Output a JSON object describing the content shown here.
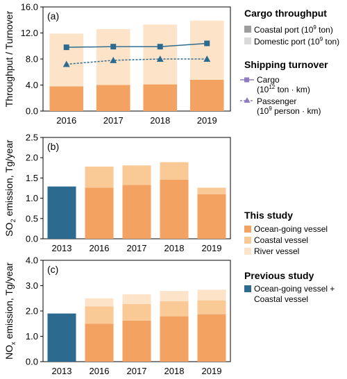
{
  "colors": {
    "ocean": "#f4a261",
    "coastal": "#f9c996",
    "river": "#fde3c8",
    "coastal_port": "#f4a261",
    "domestic_port": "#fde3c8",
    "previous": "#2d6a8f",
    "cargo_line": "#2d6a8f",
    "passenger_line": "#2d6a8f",
    "legend_cargo_line": "#8e7cc3",
    "legend_passenger_line": "#8e7cc3",
    "legend_coastal_port": "#9e9e9e",
    "legend_domestic_port": "#d9d9d9"
  },
  "chart_data": [
    {
      "type": "bar",
      "panel_label": "(a)",
      "ylabel": "Throughput / Turnover",
      "ylim": [
        0,
        16
      ],
      "yticks": [
        "0.0",
        "4.0",
        "8.0",
        "12.0",
        "16.0"
      ],
      "categories": [
        "2016",
        "2017",
        "2018",
        "2019"
      ],
      "series": [
        {
          "name": "Coastal port (10^9 ton)",
          "values": [
            3.8,
            4.0,
            4.1,
            4.8
          ]
        },
        {
          "name": "Domestic port (10^9 ton)",
          "values": [
            8.1,
            8.6,
            9.2,
            9.1
          ]
        },
        {
          "name": "Cargo (10^12 ton · km)",
          "type": "line",
          "values": [
            9.8,
            9.9,
            9.9,
            10.4
          ]
        },
        {
          "name": "Passenger (10^9 person · km)",
          "type": "line",
          "values": [
            7.2,
            7.8,
            8.0,
            8.0
          ]
        }
      ]
    },
    {
      "type": "bar",
      "panel_label": "(b)",
      "ylabel": "SO2 emission, Tg/year",
      "ylim": [
        0,
        2.5
      ],
      "yticks": [
        "0.0",
        "0.5",
        "1.0",
        "1.5",
        "2.0",
        "2.5"
      ],
      "categories": [
        "2013",
        "2016",
        "2017",
        "2018",
        "2019"
      ],
      "series": [
        {
          "name": "Ocean-going vessel + Coastal vessel (previous study)",
          "values": [
            1.29,
            null,
            null,
            null,
            null
          ]
        },
        {
          "name": "Ocean-going vessel",
          "values": [
            null,
            1.26,
            1.33,
            1.46,
            1.1
          ]
        },
        {
          "name": "Coastal vessel",
          "values": [
            null,
            0.52,
            0.48,
            0.43,
            0.16
          ]
        },
        {
          "name": "River vessel",
          "values": [
            null,
            0.0,
            0.0,
            0.0,
            0.0
          ]
        }
      ]
    },
    {
      "type": "bar",
      "panel_label": "(c)",
      "ylabel": "NOx emission, Tg/year",
      "ylim": [
        0,
        4.0
      ],
      "yticks": [
        "0.0",
        "1.0",
        "2.0",
        "3.0",
        "4.0"
      ],
      "categories": [
        "2013",
        "2016",
        "2017",
        "2018",
        "2019"
      ],
      "series": [
        {
          "name": "Ocean-going vessel + Coastal vessel (previous study)",
          "values": [
            1.9,
            null,
            null,
            null,
            null
          ]
        },
        {
          "name": "Ocean-going vessel",
          "values": [
            null,
            1.5,
            1.62,
            1.79,
            1.87
          ]
        },
        {
          "name": "Coastal vessel",
          "values": [
            null,
            0.68,
            0.66,
            0.6,
            0.55
          ]
        },
        {
          "name": "River vessel",
          "values": [
            null,
            0.32,
            0.38,
            0.4,
            0.42
          ]
        }
      ]
    }
  ],
  "legend": {
    "cargo_throughput_title": "Cargo throughput",
    "coastal_port": "Coastal port (10",
    "coastal_port_exp": "9",
    "coastal_port_unit": " ton)",
    "domestic_port": "Domestic port (10",
    "domestic_port_exp": "9",
    "domestic_port_unit": " ton)",
    "shipping_turnover_title": "Shipping turnover",
    "cargo": "Cargo",
    "cargo_unit": "(10",
    "cargo_exp": "12",
    "cargo_unit2": " ton · km)",
    "passenger": "Passenger",
    "passenger_unit": "(10",
    "passenger_exp": "9",
    "passenger_unit2": " person · km)",
    "this_study_title": "This study",
    "ocean_going": "Ocean-going vessel",
    "coastal_vessel": "Coastal vessel",
    "river_vessel": "River vessel",
    "previous_study_title": "Previous study",
    "previous_line1": "Ocean-going vessel +",
    "previous_line2": "Coastal vessel"
  },
  "axis_labels": {
    "a_ylabel": "Throughput / Turnover",
    "b_ylabel_pre": "SO",
    "b_ylabel_sub": "2",
    "b_ylabel_post": " emission, Tg/year",
    "c_ylabel_pre": "NO",
    "c_ylabel_sub": "x",
    "c_ylabel_post": " emission, Tg/year"
  }
}
